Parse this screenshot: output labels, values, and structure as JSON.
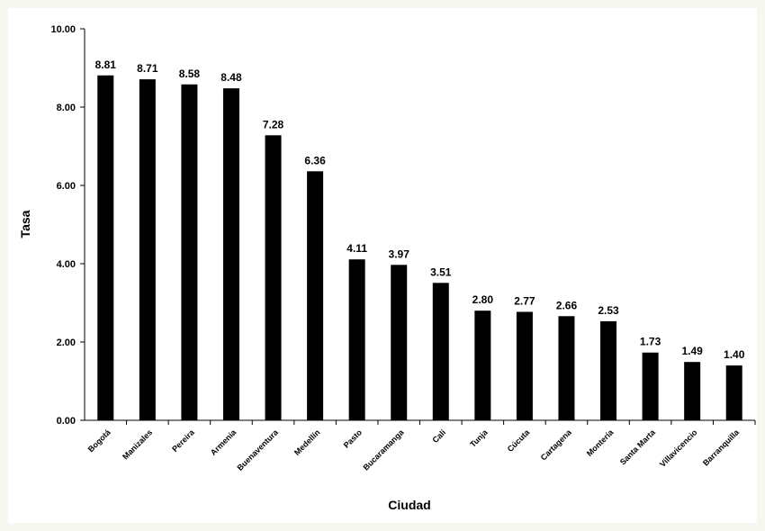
{
  "page": {
    "background": "#f6f7ee"
  },
  "chart_data": {
    "type": "bar",
    "categories": [
      "Bogotá",
      "Manizales",
      "Pereira",
      "Armenia",
      "Buenaventura",
      "Medellín",
      "Pasto",
      "Bucaramanga",
      "Cali",
      "Tunja",
      "Cúcuta",
      "Cartagena",
      "Montería",
      "Santa Marta",
      "Villavicencio",
      "Barranquilla"
    ],
    "values": [
      8.81,
      8.71,
      8.58,
      8.48,
      7.28,
      6.36,
      4.11,
      3.97,
      3.51,
      2.8,
      2.77,
      2.66,
      2.53,
      1.73,
      1.49,
      1.4
    ],
    "value_labels": [
      "8.81",
      "8.71",
      "8.58",
      "8.48",
      "7.28",
      "6.36",
      "4.11",
      "3.97",
      "3.51",
      "2.80",
      "2.77",
      "2.66",
      "2.53",
      "1.73",
      "1.49",
      "1.40"
    ],
    "title": "",
    "xlabel": "Ciudad",
    "ylabel": "Tasa",
    "ylim": [
      0,
      10
    ],
    "yticks": [
      "0.00",
      "2.00",
      "4.00",
      "6.00",
      "8.00",
      "10.00"
    ],
    "grid": false,
    "bar_color": "#000000"
  }
}
